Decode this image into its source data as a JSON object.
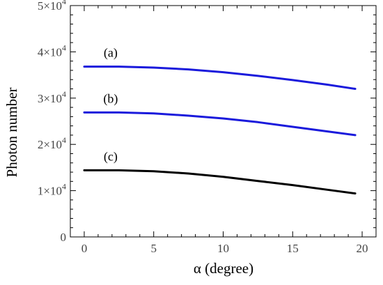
{
  "chart_data": {
    "type": "line",
    "xlabel": "α (degree)",
    "ylabel": "Photon number",
    "xlim": [
      -1,
      21
    ],
    "ylim": [
      0,
      50000
    ],
    "x_ticks": [
      0,
      5,
      10,
      15,
      20
    ],
    "x_tick_labels": [
      "0",
      "5",
      "10",
      "15",
      "20"
    ],
    "y_ticks": [
      0,
      10000,
      20000,
      30000,
      40000,
      50000
    ],
    "y_tick_labels": [
      {
        "mantissa": "0",
        "power": ""
      },
      {
        "mantissa": "1×10",
        "power": "4"
      },
      {
        "mantissa": "2×10",
        "power": "4"
      },
      {
        "mantissa": "3×10",
        "power": "4"
      },
      {
        "mantissa": "4×10",
        "power": "4"
      },
      {
        "mantissa": "5×10",
        "power": "4"
      }
    ],
    "grid": false,
    "series": [
      {
        "label": "(a)",
        "color": "#1a1adc",
        "x": [
          0,
          2.5,
          5,
          7.5,
          10,
          12.5,
          15,
          17.5,
          19.5
        ],
        "y": [
          36800,
          36800,
          36600,
          36200,
          35600,
          34800,
          33900,
          32900,
          32000
        ]
      },
      {
        "label": "(b)",
        "color": "#1a1adc",
        "x": [
          0,
          2.5,
          5,
          7.5,
          10,
          12.5,
          15,
          17.5,
          19.5
        ],
        "y": [
          26900,
          26900,
          26700,
          26200,
          25600,
          24800,
          23800,
          22800,
          22000
        ]
      },
      {
        "label": "(c)",
        "color": "#000000",
        "x": [
          0,
          2.5,
          5,
          7.5,
          10,
          12.5,
          15,
          17.5,
          19.5
        ],
        "y": [
          14400,
          14400,
          14200,
          13700,
          13000,
          12100,
          11200,
          10200,
          9400
        ]
      }
    ]
  }
}
